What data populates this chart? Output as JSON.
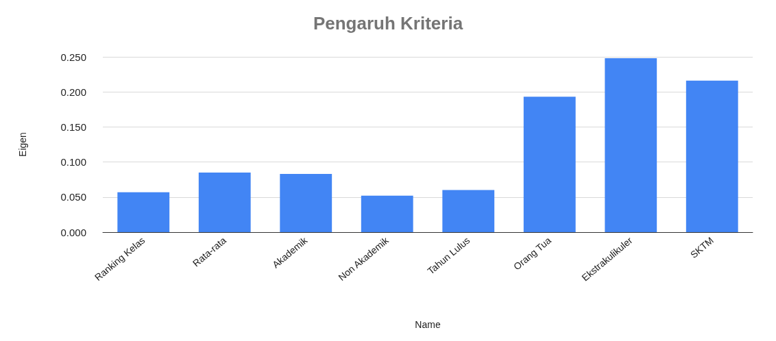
{
  "chart_data": {
    "type": "bar",
    "title": "Pengaruh Kriteria",
    "xlabel": "Name",
    "ylabel": "Eigen",
    "categories": [
      "Ranking Kelas",
      "Rata-rata",
      "Akademik",
      "Non Akademik",
      "Tahun Lulus",
      "Orang Tua",
      "Ekstrakulikuler",
      "SKTM"
    ],
    "values": [
      0.057,
      0.085,
      0.083,
      0.052,
      0.06,
      0.193,
      0.248,
      0.216
    ],
    "color": "#4285f4",
    "ylim": [
      0,
      0.25
    ],
    "yticks": [
      {
        "value": 0,
        "label": "0.000"
      },
      {
        "value": 0.05,
        "label": "0.050"
      },
      {
        "value": 0.1,
        "label": "0.100"
      },
      {
        "value": 0.15,
        "label": "0.150"
      },
      {
        "value": 0.2,
        "label": "0.200"
      },
      {
        "value": 0.25,
        "label": "0.250"
      }
    ],
    "grid": "y"
  }
}
